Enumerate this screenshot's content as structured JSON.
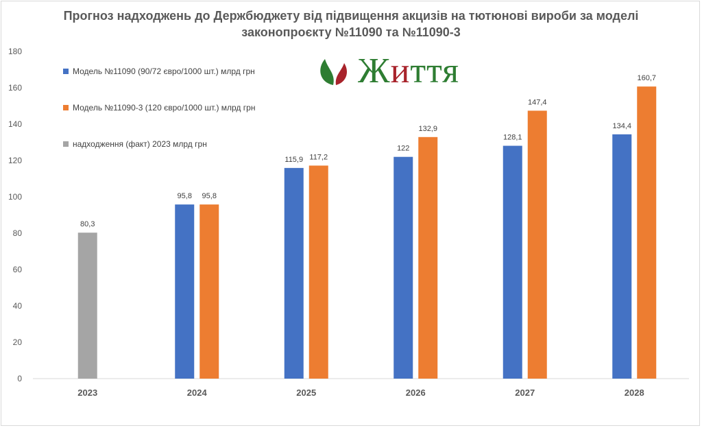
{
  "title_line1": "Прогноз надходжень до Держбюджету від підвищення акцизів на тютюнові вироби за моделі",
  "title_line2": "законопроєкту №11090 та №11090-3",
  "logo": {
    "text_part1": "Ж",
    "text_part2": "и",
    "text_part3": "ття",
    "icon": "leaf-icon",
    "colors": {
      "green": "#2e7d32",
      "red": "#a8232b"
    }
  },
  "chart_data": {
    "type": "bar",
    "title": "Прогноз надходжень до Держбюджету від підвищення акцизів на тютюнові вироби за моделі законопроєкту №11090 та №11090-3",
    "categories": [
      "2023",
      "2024",
      "2025",
      "2026",
      "2027",
      "2028"
    ],
    "series": [
      {
        "name": "Модель №11090 (90/72 євро/1000 шт.) млрд грн",
        "color": "#4472c4",
        "values": [
          null,
          95.8,
          115.9,
          122,
          128.1,
          134.4
        ],
        "labels": [
          null,
          "95,8",
          "115,9",
          "122",
          "128,1",
          "134,4"
        ]
      },
      {
        "name": "Модель №11090-3 (120 євро/1000 шт.) млрд грн",
        "color": "#ed7d31",
        "values": [
          null,
          95.8,
          117.2,
          132.9,
          147.4,
          160.7
        ],
        "labels": [
          null,
          "95,8",
          "117,2",
          "132,9",
          "147,4",
          "160,7"
        ]
      },
      {
        "name": "надходження (факт) 2023 млрд грн",
        "color": "#a5a5a5",
        "values": [
          80.3,
          null,
          null,
          null,
          null,
          null
        ],
        "labels": [
          "80,3",
          null,
          null,
          null,
          null,
          null
        ]
      }
    ],
    "yticks": [
      "0",
      "20",
      "40",
      "60",
      "80",
      "100",
      "120",
      "140",
      "160",
      "180"
    ],
    "ylim": [
      0,
      180
    ],
    "grid": false,
    "legend_position": "top-left"
  }
}
